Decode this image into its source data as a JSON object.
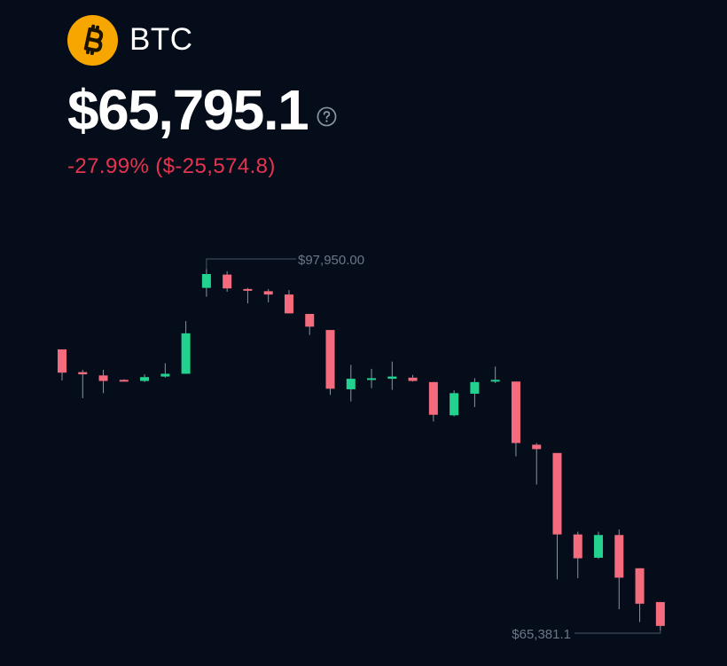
{
  "coin": {
    "symbol": "BTC",
    "logo_icon": "bitcoin-icon",
    "logo_color": "#f7a600"
  },
  "price": "$65,795.1",
  "change": "-27.99% ($-25,574.8)",
  "colors": {
    "background": "#050d1a",
    "up": "#22d390",
    "down": "#f46b7d",
    "change_text": "#e6344f",
    "annotation": "#6b7689"
  },
  "chart_data": {
    "type": "candlestick",
    "high_label": "$97,950.00",
    "low_label": "$65,381.1",
    "y_range": [
      65381.1,
      97950.0
    ],
    "candles": [
      {
        "open": 90750,
        "close": 88650,
        "high": 90750,
        "low": 87950
      },
      {
        "open": 88700,
        "close": 88500,
        "high": 88900,
        "low": 86350
      },
      {
        "open": 88400,
        "close": 87900,
        "high": 88900,
        "low": 86800
      },
      {
        "open": 88000,
        "close": 87950,
        "high": 88050,
        "low": 87850
      },
      {
        "open": 87900,
        "close": 88250,
        "high": 88500,
        "low": 87800
      },
      {
        "open": 88300,
        "close": 88550,
        "high": 89500,
        "low": 88200
      },
      {
        "open": 88550,
        "close": 92200,
        "high": 93300,
        "low": 88550
      },
      {
        "open": 96300,
        "close": 97550,
        "high": 98000,
        "low": 95500
      },
      {
        "open": 97500,
        "close": 96250,
        "high": 97800,
        "low": 95950
      },
      {
        "open": 96200,
        "close": 96050,
        "high": 96300,
        "low": 94900
      },
      {
        "open": 96000,
        "close": 95700,
        "high": 96200,
        "low": 95000
      },
      {
        "open": 95700,
        "close": 94000,
        "high": 96100,
        "low": 94000
      },
      {
        "open": 93950,
        "close": 92800,
        "high": 93950,
        "low": 92050
      },
      {
        "open": 92500,
        "close": 87200,
        "high": 92500,
        "low": 86650
      },
      {
        "open": 87150,
        "close": 88100,
        "high": 89350,
        "low": 86050
      },
      {
        "open": 88000,
        "close": 88150,
        "high": 89000,
        "low": 87250
      },
      {
        "open": 88100,
        "close": 88300,
        "high": 89650,
        "low": 87100
      },
      {
        "open": 88200,
        "close": 87900,
        "high": 88450,
        "low": 87850
      },
      {
        "open": 87800,
        "close": 84850,
        "high": 87800,
        "low": 84250
      },
      {
        "open": 84800,
        "close": 86800,
        "high": 87050,
        "low": 84700
      },
      {
        "open": 86750,
        "close": 87800,
        "high": 88150,
        "low": 85550
      },
      {
        "open": 87850,
        "close": 88000,
        "high": 89200,
        "low": 87700
      },
      {
        "open": 87850,
        "close": 82300,
        "high": 87850,
        "low": 81100
      },
      {
        "open": 82150,
        "close": 81750,
        "high": 82300,
        "low": 78550
      },
      {
        "open": 81400,
        "close": 74050,
        "high": 81400,
        "low": 70000
      },
      {
        "open": 74050,
        "close": 71900,
        "high": 74300,
        "low": 70100
      },
      {
        "open": 71950,
        "close": 74000,
        "high": 74300,
        "low": 71850
      },
      {
        "open": 74000,
        "close": 70150,
        "high": 74500,
        "low": 67300
      },
      {
        "open": 71000,
        "close": 67800,
        "high": 71000,
        "low": 66150
      },
      {
        "open": 67950,
        "close": 65795.1,
        "high": 67950,
        "low": 65381.1
      }
    ]
  }
}
